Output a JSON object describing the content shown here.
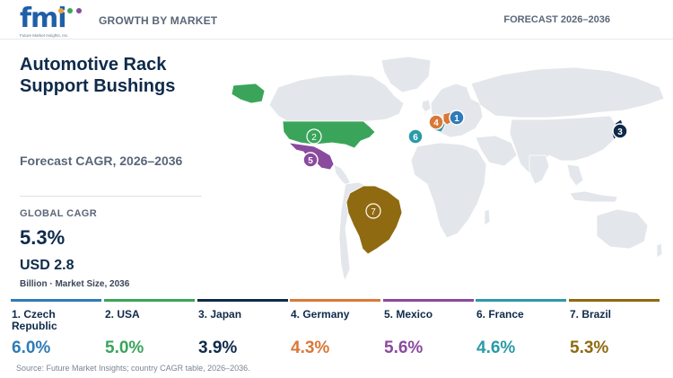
{
  "header": {
    "logo_text": "fmi",
    "logo_sub": "Future Market Insights, Inc.",
    "left_label": "GROWTH BY MARKET",
    "right_label": "FORECAST 2026–2036"
  },
  "panel": {
    "title": "Automotive Rack Support Bushings",
    "subtitle": "Forecast CAGR, 2026–2036",
    "global_label": "GLOBAL CAGR",
    "global_value": "5.3%",
    "market_size": "USD 2.8",
    "market_note": "Billion · Market Size, 2036"
  },
  "colors": {
    "czech": "#2e7bb8",
    "usa": "#3aa55a",
    "japan": "#0f2a4a",
    "germany": "#d97838",
    "mexico": "#8a4a9e",
    "france": "#2a9aa8",
    "brazil": "#8f6a10",
    "land": "#e3e6ea"
  },
  "countries": [
    {
      "rank": "1",
      "name": "1. Czech Republic",
      "cagr": "6.0%",
      "color": "#2e7bb8"
    },
    {
      "rank": "2",
      "name": "2. USA",
      "cagr": "5.0%",
      "color": "#3aa55a"
    },
    {
      "rank": "3",
      "name": "3. Japan",
      "cagr": "3.9%",
      "color": "#0f2a4a"
    },
    {
      "rank": "4",
      "name": "4. Germany",
      "cagr": "4.3%",
      "color": "#d97838"
    },
    {
      "rank": "5",
      "name": "5. Mexico",
      "cagr": "5.6%",
      "color": "#8a4a9e"
    },
    {
      "rank": "6",
      "name": "6. France",
      "cagr": "4.6%",
      "color": "#2a9aa8"
    },
    {
      "rank": "7",
      "name": "7. Brazil",
      "cagr": "5.3%",
      "color": "#8f6a10"
    }
  ],
  "source": "Source: Future Market Insights; country CAGR table, 2026–2036."
}
